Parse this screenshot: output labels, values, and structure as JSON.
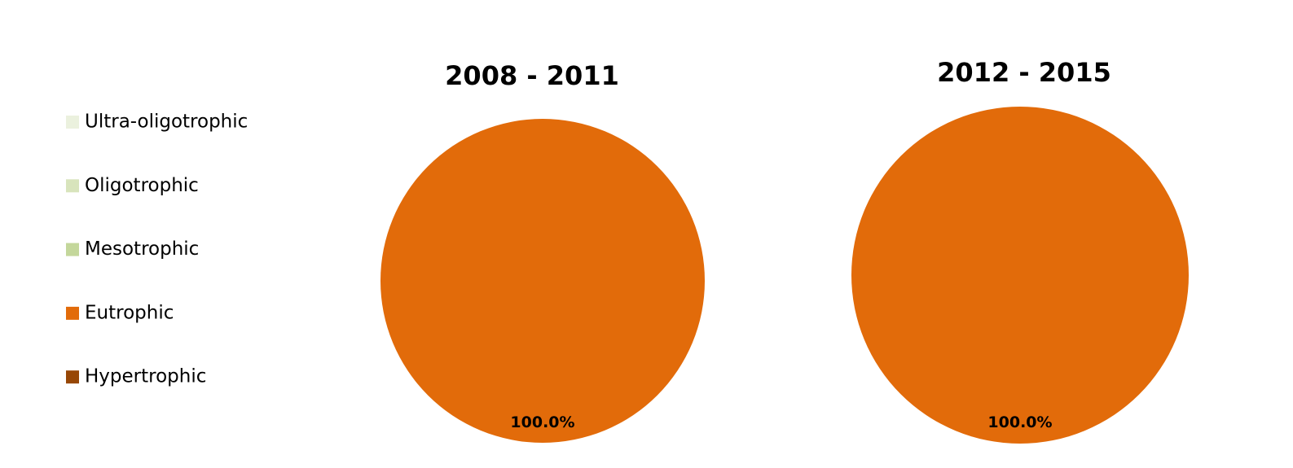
{
  "chart_data": [
    {
      "type": "pie",
      "title": "2008 - 2011",
      "categories": [
        "Ultra-oligotrophic",
        "Oligotrophic",
        "Mesotrophic",
        "Eutrophic",
        "Hypertrophic"
      ],
      "values": [
        0,
        0,
        0,
        100,
        0
      ],
      "value_labels": [
        null,
        null,
        null,
        "100.0%",
        null
      ],
      "colors": [
        "#ebf1de",
        "#d8e4bc",
        "#c4d79b",
        "#e26b0a",
        "#974706"
      ]
    },
    {
      "type": "pie",
      "title": "2012 - 2015",
      "categories": [
        "Ultra-oligotrophic",
        "Oligotrophic",
        "Mesotrophic",
        "Eutrophic",
        "Hypertrophic"
      ],
      "values": [
        0,
        0,
        0,
        100,
        0
      ],
      "value_labels": [
        null,
        null,
        null,
        "100.0%",
        null
      ],
      "colors": [
        "#ebf1de",
        "#d8e4bc",
        "#c4d79b",
        "#e26b0a",
        "#974706"
      ]
    }
  ]
}
